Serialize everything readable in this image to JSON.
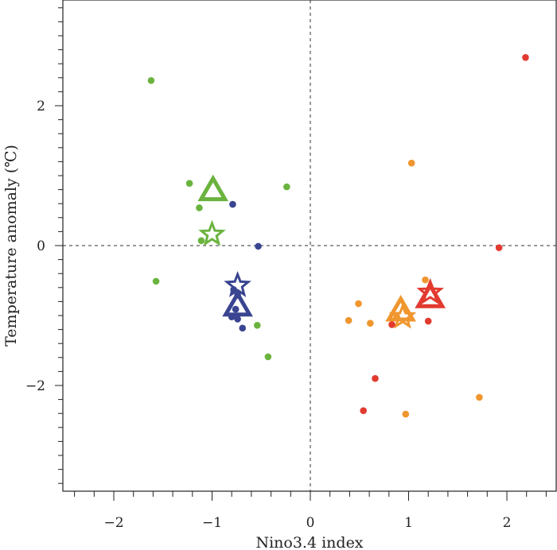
{
  "chart_data": {
    "type": "scatter",
    "xlabel": "Nino3.4 index",
    "ylabel": "Temperature anomaly (℃)",
    "xlim": [
      -2.5,
      2.5
    ],
    "ylim": [
      -3.5,
      3.5
    ],
    "xticks": [
      -2,
      -1,
      0,
      1,
      2
    ],
    "yticks": [
      -2,
      0,
      2
    ],
    "xtick_labels": [
      "−2",
      "−1",
      "0",
      "1",
      "2"
    ],
    "ytick_labels": [
      "−2",
      "0",
      "2"
    ],
    "reference_lines": {
      "x": 0,
      "y": 0,
      "style": "dashed"
    },
    "grid": false,
    "series": [
      {
        "color": "#6bb33f",
        "points": [
          {
            "x": -1.62,
            "y": 2.36
          },
          {
            "x": -1.23,
            "y": 0.89
          },
          {
            "x": -1.13,
            "y": 0.54
          },
          {
            "x": -1.11,
            "y": 0.07
          },
          {
            "x": -0.24,
            "y": 0.84
          },
          {
            "x": -1.57,
            "y": -0.51
          },
          {
            "x": -0.54,
            "y": -1.14
          },
          {
            "x": -0.43,
            "y": -1.59
          }
        ],
        "mean_triangle": {
          "x": -0.99,
          "y": 0.8
        },
        "star": {
          "x": -1.0,
          "y": 0.16
        }
      },
      {
        "color": "#3a4591",
        "points": [
          {
            "x": -0.79,
            "y": 0.59
          },
          {
            "x": -0.53,
            "y": -0.01
          },
          {
            "x": -0.78,
            "y": -0.63
          },
          {
            "x": -0.74,
            "y": -0.71
          },
          {
            "x": -0.8,
            "y": -1.02
          },
          {
            "x": -0.74,
            "y": -1.05
          },
          {
            "x": -0.69,
            "y": -1.18
          },
          {
            "x": -0.76,
            "y": -0.91
          }
        ],
        "mean_triangle": {
          "x": -0.74,
          "y": -0.85
        },
        "star": {
          "x": -0.74,
          "y": -0.57
        }
      },
      {
        "color": "#f0962e",
        "points": [
          {
            "x": 1.03,
            "y": 1.18
          },
          {
            "x": 1.17,
            "y": -0.49
          },
          {
            "x": 0.49,
            "y": -0.83
          },
          {
            "x": 0.39,
            "y": -1.07
          },
          {
            "x": 0.61,
            "y": -1.11
          },
          {
            "x": 1.72,
            "y": -2.17
          },
          {
            "x": 0.97,
            "y": -2.41
          },
          {
            "x": 0.88,
            "y": -1.02
          }
        ],
        "mean_triangle": {
          "x": 0.92,
          "y": -0.92
        },
        "star": {
          "x": 0.94,
          "y": -1.02
        }
      },
      {
        "color": "#e23a2f",
        "points": [
          {
            "x": 2.19,
            "y": 2.69
          },
          {
            "x": 1.92,
            "y": -0.03
          },
          {
            "x": 1.2,
            "y": -1.08
          },
          {
            "x": 0.83,
            "y": -1.13
          },
          {
            "x": 0.66,
            "y": -1.9
          },
          {
            "x": 0.54,
            "y": -2.36
          }
        ],
        "mean_triangle": {
          "x": 1.22,
          "y": -0.73
        },
        "star": {
          "x": 1.22,
          "y": -0.67
        }
      }
    ]
  }
}
